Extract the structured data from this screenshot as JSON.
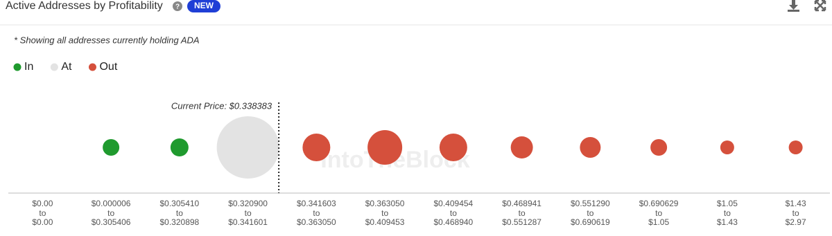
{
  "header": {
    "title": "Active Addresses by Profitability",
    "badge": "NEW"
  },
  "chart_data": {
    "type": "bubble",
    "note": "* Showing all addresses currently holding ADA",
    "annotation": "Current Price: $0.338383",
    "watermark": "IntoTheBlock",
    "range_word": "to",
    "categories": [
      {
        "low": "$0.00",
        "high": "$0.00"
      },
      {
        "low": "$0.000006",
        "high": "$0.305406"
      },
      {
        "low": "$0.305410",
        "high": "$0.320898"
      },
      {
        "low": "$0.320900",
        "high": "$0.341601"
      },
      {
        "low": "$0.341603",
        "high": "$0.363050"
      },
      {
        "low": "$0.363050",
        "high": "$0.409453"
      },
      {
        "low": "$0.409454",
        "high": "$0.468940"
      },
      {
        "low": "$0.468941",
        "high": "$0.551287"
      },
      {
        "low": "$0.551290",
        "high": "$0.690619"
      },
      {
        "low": "$0.690629",
        "high": "$1.05"
      },
      {
        "low": "$1.05",
        "high": "$1.43"
      },
      {
        "low": "$1.43",
        "high": "$2.97"
      }
    ],
    "series": [
      {
        "name": "In",
        "color": "#1f9a2e",
        "values": [
          null,
          144,
          169,
          null,
          null,
          null,
          null,
          null,
          null,
          null,
          null,
          null
        ]
      },
      {
        "name": "At",
        "color": "#e3e3e3",
        "values": [
          null,
          null,
          null,
          2025,
          null,
          null,
          null,
          null,
          null,
          null,
          null,
          null
        ]
      },
      {
        "name": "Out",
        "color": "#d5503c",
        "values": [
          null,
          null,
          null,
          null,
          400,
          625,
          400,
          256,
          225,
          144,
          100,
          100
        ]
      }
    ]
  }
}
